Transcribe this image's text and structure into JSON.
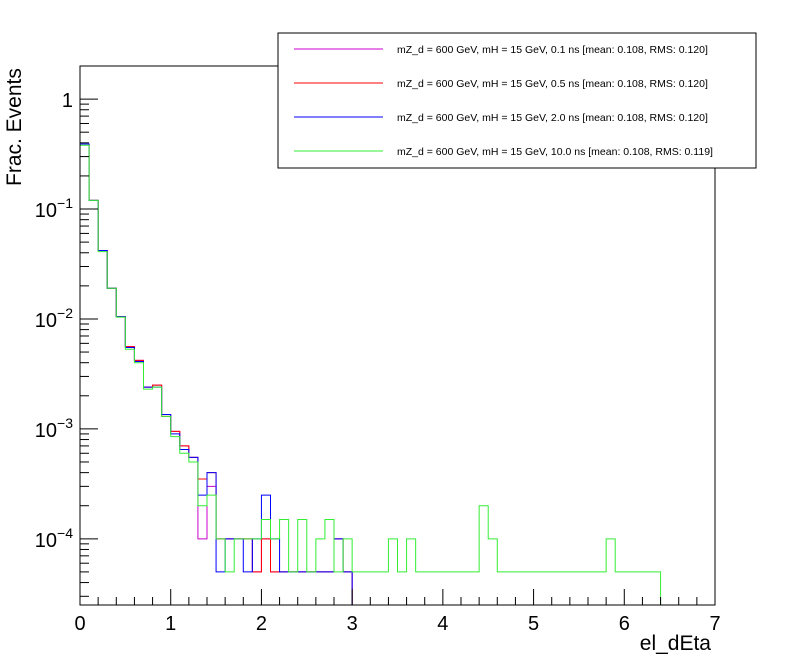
{
  "chart_data": {
    "type": "histogram-step",
    "xlabel": "el_dEta",
    "ylabel": "Frac. Events",
    "xlim": [
      0,
      7
    ],
    "ylim": [
      2.5e-05,
      2
    ],
    "yscale": "log",
    "grid": false,
    "legend_position": "top-right",
    "x_ticks": [
      {
        "value": 0,
        "label": "0"
      },
      {
        "value": 1,
        "label": "1"
      },
      {
        "value": 2,
        "label": "2"
      },
      {
        "value": 3,
        "label": "3"
      },
      {
        "value": 4,
        "label": "4"
      },
      {
        "value": 5,
        "label": "5"
      },
      {
        "value": 6,
        "label": "6"
      },
      {
        "value": 7,
        "label": "7"
      }
    ],
    "y_ticks": [
      {
        "value": 1,
        "mantissa": "1",
        "exponent": ""
      },
      {
        "value": 0.1,
        "mantissa": "10",
        "exponent": "−1"
      },
      {
        "value": 0.01,
        "mantissa": "10",
        "exponent": "−2"
      },
      {
        "value": 0.001,
        "mantissa": "10",
        "exponent": "−3"
      },
      {
        "value": 0.0001,
        "mantissa": "10",
        "exponent": "−4"
      }
    ],
    "bin_width": 0.1,
    "series": [
      {
        "name": "mZ_d = 600 GeV, mH = 15 GeV, 0.1 ns [mean: 0.108, RMS: 0.120]",
        "color": "#cc00cc",
        "values": [
          0.39,
          0.12,
          0.042,
          0.019,
          0.0105,
          0.0056,
          0.0042,
          0.0024,
          0.0025,
          0.00135,
          0.00095,
          0.0007,
          0.00055,
          0.0001,
          0.0003,
          0.0001,
          0.0001,
          0.0001,
          0.0001,
          5e-05,
          0.0001,
          5e-05,
          5e-05,
          5e-05,
          5e-05,
          5e-05,
          5e-05,
          5e-05,
          0.0001,
          5e-05
        ]
      },
      {
        "name": "mZ_d = 600 GeV, mH = 15 GeV, 0.5 ns [mean: 0.108, RMS: 0.120]",
        "color": "#ff0000",
        "values": [
          0.39,
          0.12,
          0.042,
          0.019,
          0.0105,
          0.0056,
          0.0042,
          0.0024,
          0.0025,
          0.0013,
          0.00095,
          0.0007,
          0.00055,
          0.00035,
          0.0004,
          0.0001,
          0.0001,
          0.0001,
          0.0001,
          5e-05,
          0.0001,
          5e-05,
          5e-05,
          5e-05,
          5e-05,
          5e-05,
          5e-05,
          5e-05,
          0.0001,
          5e-05
        ]
      },
      {
        "name": "mZ_d = 600 GeV, mH = 15 GeV, 2.0 ns [mean: 0.108, RMS: 0.120]",
        "color": "#0000ff",
        "values": [
          0.39,
          0.12,
          0.042,
          0.019,
          0.0105,
          0.0055,
          0.0041,
          0.0024,
          0.0024,
          0.00135,
          0.0009,
          0.00065,
          0.00055,
          0.00025,
          0.0004,
          5e-05,
          0.0001,
          0.0001,
          5e-05,
          0.0001,
          0.00025,
          0.0001,
          5e-05,
          5e-05,
          5e-05,
          5e-05,
          5e-05,
          5e-05,
          0.0001,
          5e-05
        ]
      },
      {
        "name": "mZ_d = 600 GeV, mH = 15 GeV, 10.0 ns [mean: 0.108, RMS: 0.119]",
        "color": "#33ee33",
        "values": [
          0.38,
          0.12,
          0.041,
          0.019,
          0.0104,
          0.0053,
          0.004,
          0.0023,
          0.0024,
          0.0013,
          0.00085,
          0.0006,
          0.0005,
          0.0002,
          0.00025,
          0.0001,
          5e-05,
          0.0001,
          0.0001,
          0.0001,
          0.00015,
          0.0001,
          0.00015,
          5e-05,
          0.00015,
          5e-05,
          0.0001,
          0.00015,
          5e-05,
          0.0001,
          5e-05,
          5e-05,
          5e-05,
          5e-05,
          0.0001,
          5e-05,
          0.0001,
          5e-05,
          5e-05,
          5e-05,
          5e-05,
          5e-05,
          5e-05,
          5e-05,
          0.0002,
          0.0001,
          5e-05,
          5e-05,
          5e-05,
          5e-05,
          5e-05,
          5e-05,
          5e-05,
          5e-05,
          5e-05,
          5e-05,
          5e-05,
          5e-05,
          0.0001,
          5e-05,
          5e-05,
          5e-05,
          5e-05,
          5e-05
        ]
      }
    ]
  }
}
